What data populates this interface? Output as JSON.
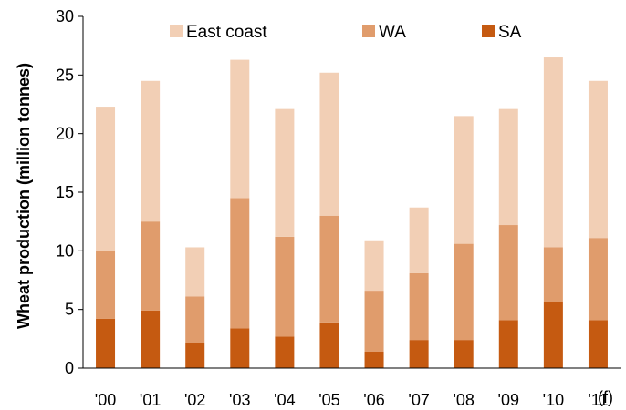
{
  "chart_data": {
    "type": "bar",
    "stacked": true,
    "categories": [
      "'00",
      "'01",
      "'02",
      "'03",
      "'04",
      "'05",
      "'06",
      "'07",
      "'08",
      "'09",
      "'10",
      "'11"
    ],
    "x_suffix": "(f)",
    "ylabel": "Wheat production (million tonnes)",
    "ylim": [
      0,
      30
    ],
    "yticks": [
      0,
      5,
      10,
      15,
      20,
      25,
      30
    ],
    "grid": false,
    "legend_position": "top",
    "series": [
      {
        "name": "SA",
        "color": "#c55a11",
        "values": [
          4.2,
          4.9,
          2.1,
          3.4,
          2.7,
          3.9,
          1.4,
          2.4,
          2.4,
          4.1,
          5.6,
          4.1
        ]
      },
      {
        "name": "WA",
        "color": "#e09c6c",
        "values": [
          5.8,
          7.6,
          4.0,
          11.1,
          8.5,
          9.1,
          5.2,
          5.7,
          8.2,
          8.1,
          4.7,
          7.0
        ]
      },
      {
        "name": "East coast",
        "color": "#f2cfb5",
        "values": [
          12.3,
          12.0,
          4.2,
          11.8,
          10.9,
          12.2,
          4.3,
          5.6,
          10.9,
          9.9,
          16.2,
          13.4
        ]
      }
    ],
    "legend_order": [
      "East coast",
      "WA",
      "SA"
    ]
  }
}
